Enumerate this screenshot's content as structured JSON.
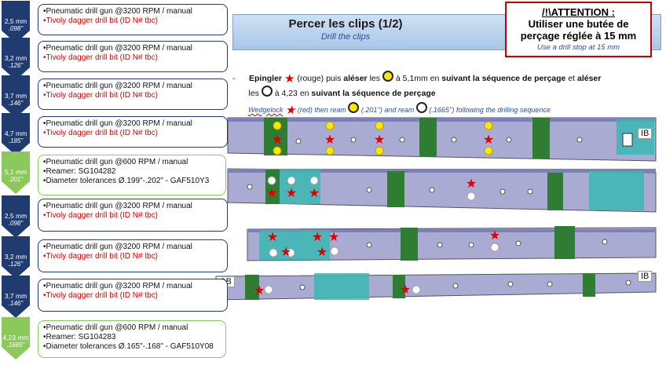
{
  "header": {
    "title_fr": "Percer les clips (1/2)",
    "title_en": "Drill the clips"
  },
  "attention": {
    "prefix": "/!\\",
    "title": "ATTENTION",
    "colon": " :",
    "line1": "Utiliser une butée de",
    "line2": "perçage réglée à 15 mm",
    "english": "Use a drill stop at 15 mm"
  },
  "instructions": {
    "bullet": "-",
    "fr_part1": "Epingler",
    "fr_part2": "(rouge) puis",
    "fr_part3": "aléser",
    "fr_part4": "les",
    "fr_part5": "à 5,1mm en",
    "fr_part6": "suivant la séquence de perçage",
    "fr_part7": "et",
    "fr_part8": "aléser",
    "fr_part9": "les",
    "fr_part10": "à 4,23 en",
    "fr_part11": "suivant la séquence de perçage",
    "en_part1": "Wedgelock",
    "en_part2": "(red) then ream",
    "en_part3": "(.201'') and ream",
    "en_part4": "(.1665'') following the drilling sequence"
  },
  "steps": [
    {
      "size": "2,5 mm",
      "inch": ".098\"",
      "color": "#1f3b70",
      "lines": [
        "•Pneumatic drill gun @3200 RPM / manual"
      ],
      "red_line": "•Tivoly dagger drill bit (ID N# tbc)"
    },
    {
      "size": "3,2 mm",
      "inch": ".126\"",
      "color": "#1f3b70",
      "lines": [
        "•Pneumatic drill gun @3200 RPM / manual"
      ],
      "red_line": "•Tivoly dagger drill bit (ID N# tbc)"
    },
    {
      "size": "3,7 mm",
      "inch": ".146\"",
      "color": "#1f3b70",
      "lines": [
        "•Pneumatic drill gun @3200 RPM / manual"
      ],
      "red_line": "•Tivoly dagger drill bit (ID N# tbc)"
    },
    {
      "size": "4,7 mm",
      "inch": ".185\"",
      "color": "#1f3b70",
      "lines": [
        "•Pneumatic drill gun @3200 RPM / manual"
      ],
      "red_line": "•Tivoly dagger drill bit (ID N# tbc)"
    },
    {
      "size": "5,1 mm",
      "inch": ".201\"",
      "color": "#8cc95c",
      "lines": [
        "•Pneumatic drill gun @600 RPM / manual",
        "•Reamer: SG104282",
        "•Diameter tolerances Ø.199\"-.202\" - GAF510Y3"
      ],
      "red_line": ""
    },
    {
      "size": "2,5 mm",
      "inch": ".098\"",
      "color": "#1f3b70",
      "lines": [
        "•Pneumatic drill gun @3200 RPM / manual"
      ],
      "red_line": "•Tivoly dagger drill bit (ID N# tbc)"
    },
    {
      "size": "3,2 mm",
      "inch": ".126\"",
      "color": "#1f3b70",
      "lines": [
        "•Pneumatic drill gun @3200 RPM / manual"
      ],
      "red_line": "•Tivoly dagger drill bit (ID N# tbc)"
    },
    {
      "size": "3,7 mm",
      "inch": ".146\"",
      "color": "#1f3b70",
      "lines": [
        "•Pneumatic drill gun @3200 RPM / manual"
      ],
      "red_line": "•Tivoly dagger drill bit (ID N# tbc)"
    },
    {
      "size": "4,23 mm",
      "inch": ".1665\"",
      "color": "#8cc95c",
      "lines": [
        "•Pneumatic drill gun @600 RPM / manual",
        "•Reamer: SG104283",
        "•Diameter tolerances Ø.165\"-.168\" - GAF510Y08"
      ],
      "red_line": ""
    }
  ],
  "strip_labels": {
    "ib": "IB",
    "ob": "OB"
  },
  "colors": {
    "navy": "#1f3b70",
    "green": "#8cc95c",
    "red": "#e00000",
    "yellow": "#ffe800",
    "part": "#a9abd3",
    "clip": "#2e7d32",
    "fixture": "#39b7b2"
  }
}
